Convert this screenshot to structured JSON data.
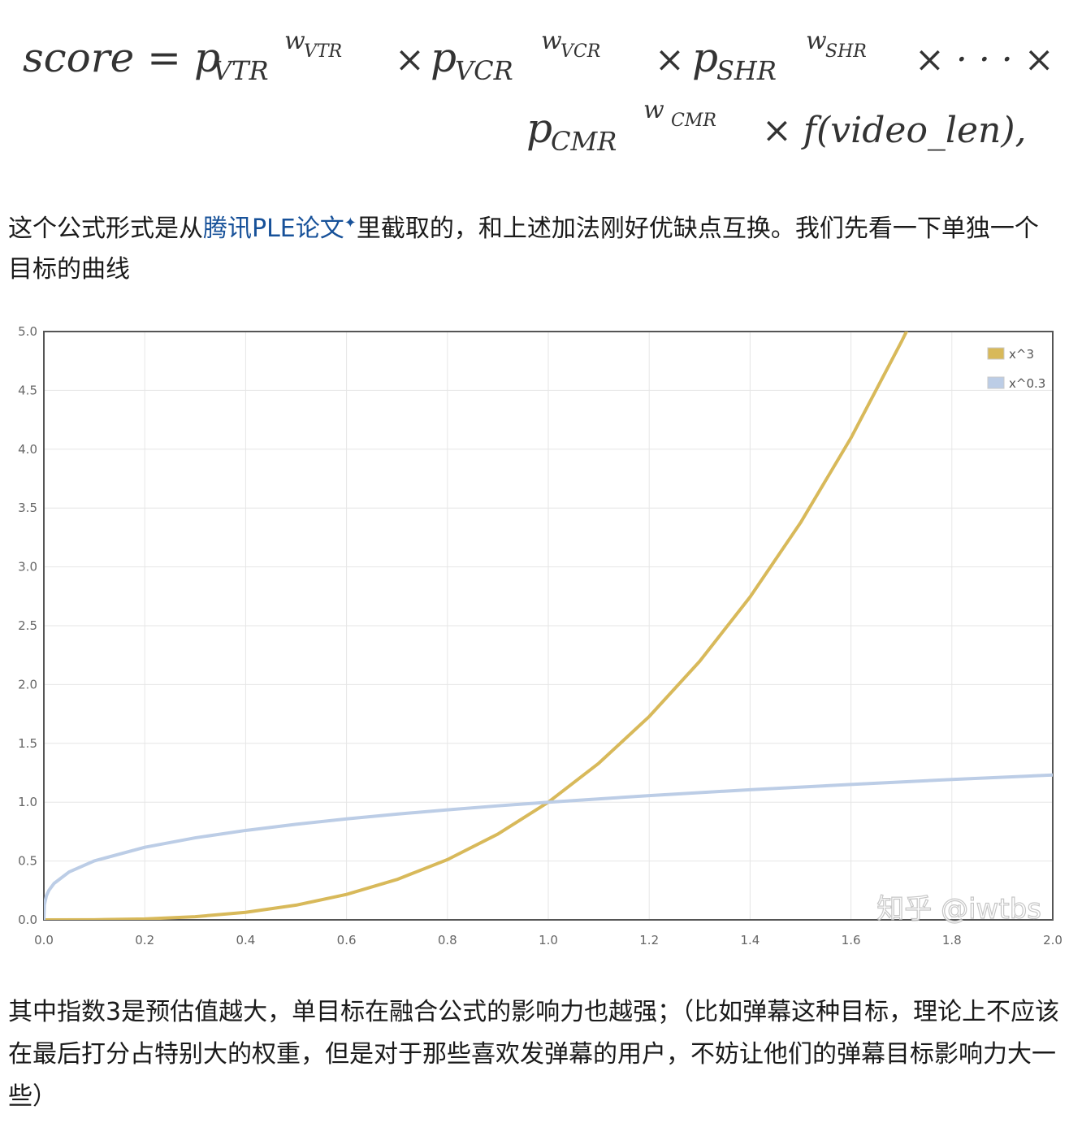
{
  "formula": {
    "line1": "score = p",
    "sub_vtr": "VTR",
    "sup_vtr": "w",
    "sup_vtr_sub": "VTR",
    "times": "×",
    "sub_vcr": "VCR",
    "sup_vcr_sub": "VCR",
    "sub_shr": "SHR",
    "sup_shr_sub": "SHR",
    "dots": "× · · · ×",
    "p": "p",
    "sub_cmr": "CMR",
    "sup_cmr_sub": "CMR",
    "tail": "× f(video_len),"
  },
  "paragraph1": {
    "before": "这个公式形式是从",
    "link": "腾讯PLE论文",
    "link_mark": "✦",
    "after": "里截取的，和上述加法刚好优缺点互换。我们先看一下单独一个目标的曲线"
  },
  "chart_data": {
    "type": "line",
    "xlim": [
      0.0,
      2.0
    ],
    "ylim": [
      0.0,
      5.0
    ],
    "x_ticks": [
      "0.0",
      "0.2",
      "0.4",
      "0.6",
      "0.8",
      "1.0",
      "1.2",
      "1.4",
      "1.6",
      "1.8",
      "2.0"
    ],
    "y_ticks": [
      "0.0",
      "0.5",
      "1.0",
      "1.5",
      "2.0",
      "2.5",
      "3.0",
      "3.5",
      "4.0",
      "4.5",
      "5.0"
    ],
    "grid": true,
    "legend_position": "top-right",
    "series": [
      {
        "name": "x^3",
        "color": "#d8b95a",
        "x": [
          0.0,
          0.1,
          0.2,
          0.3,
          0.4,
          0.5,
          0.6,
          0.7,
          0.8,
          0.9,
          1.0,
          1.1,
          1.2,
          1.3,
          1.4,
          1.5,
          1.6,
          1.7,
          1.71
        ],
        "y": [
          0.0,
          0.001,
          0.008,
          0.027,
          0.064,
          0.125,
          0.216,
          0.343,
          0.512,
          0.729,
          1.0,
          1.331,
          1.728,
          2.197,
          2.744,
          3.375,
          4.096,
          4.913,
          5.0
        ]
      },
      {
        "name": "x^0.3",
        "color": "#bccde6",
        "x": [
          0.0,
          0.001,
          0.005,
          0.01,
          0.02,
          0.05,
          0.1,
          0.2,
          0.3,
          0.4,
          0.5,
          0.6,
          0.7,
          0.8,
          0.9,
          1.0,
          1.2,
          1.4,
          1.6,
          1.8,
          2.0
        ],
        "y": [
          0.0,
          0.126,
          0.204,
          0.251,
          0.309,
          0.407,
          0.501,
          0.617,
          0.697,
          0.76,
          0.812,
          0.858,
          0.899,
          0.935,
          0.969,
          1.0,
          1.056,
          1.106,
          1.151,
          1.193,
          1.231
        ]
      }
    ],
    "watermark": "知乎 @iwtbs"
  },
  "paragraph2": "其中指数3是预估值越大，单目标在融合公式的影响力也越强；（比如弹幕这种目标，理论上不应该在最后打分占特别大的权重，但是对于那些喜欢发弹幕的用户，不妨让他们的弹幕目标影响力大一些）"
}
